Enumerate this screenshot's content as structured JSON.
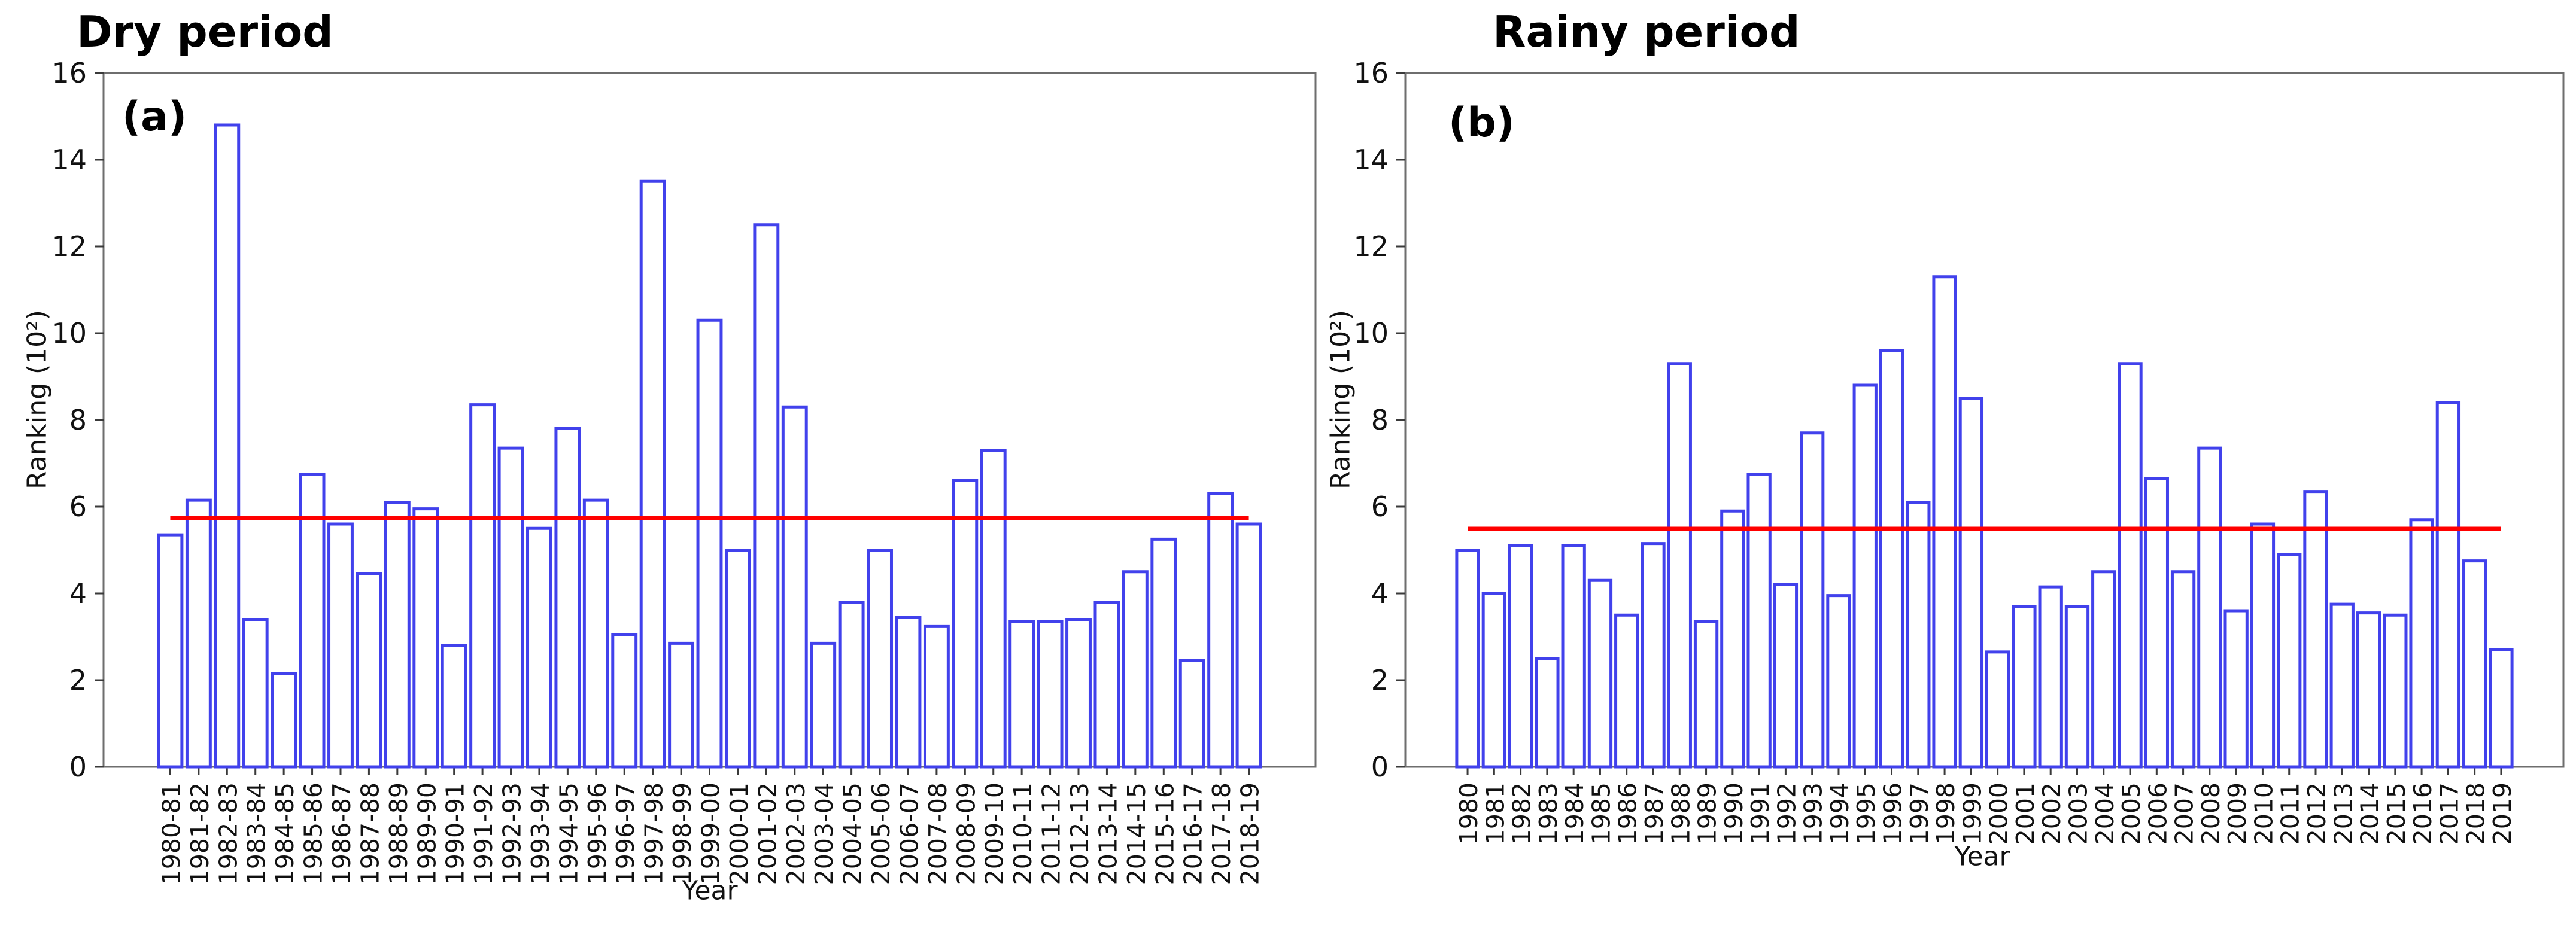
{
  "colors": {
    "background": "#ffffff",
    "bar_fill": "#ffffff",
    "bar_edge": "#4141ec",
    "mean_line": "#ff0000",
    "spine": "#6e6e6e",
    "tick": "#3a3a3a",
    "text": "#111111"
  },
  "chart_data": [
    {
      "type": "bar",
      "panel_label": "(a)",
      "title": "Dry period",
      "xlabel": "Year",
      "ylabel": "Ranking (10²)",
      "ylim": [
        0,
        16
      ],
      "yticks": [
        0,
        2,
        4,
        6,
        8,
        10,
        12,
        14,
        16
      ],
      "grid": false,
      "legend_position": "none",
      "mean_line": {
        "value": 5.74,
        "color": "#ff0000"
      },
      "categories": [
        "1980-81",
        "1981-82",
        "1982-83",
        "1983-84",
        "1984-85",
        "1985-86",
        "1986-87",
        "1987-88",
        "1988-89",
        "1989-90",
        "1990-91",
        "1991-92",
        "1992-93",
        "1993-94",
        "1994-95",
        "1995-96",
        "1996-97",
        "1997-98",
        "1998-99",
        "1999-00",
        "2000-01",
        "2001-02",
        "2002-03",
        "2003-04",
        "2004-05",
        "2005-06",
        "2006-07",
        "2007-08",
        "2008-09",
        "2009-10",
        "2010-11",
        "2011-12",
        "2012-13",
        "2013-14",
        "2014-15",
        "2015-16",
        "2016-17",
        "2017-18",
        "2018-19"
      ],
      "values": [
        5.35,
        6.15,
        14.8,
        3.4,
        2.15,
        6.75,
        5.6,
        4.45,
        6.1,
        5.95,
        2.8,
        8.35,
        7.35,
        5.5,
        7.8,
        6.15,
        3.05,
        13.5,
        2.85,
        10.3,
        5.0,
        12.5,
        8.3,
        2.85,
        3.8,
        5.0,
        3.45,
        3.25,
        6.6,
        7.3,
        3.35,
        3.35,
        3.4,
        3.8,
        4.5,
        5.25,
        2.45,
        6.3,
        5.6
      ]
    },
    {
      "type": "bar",
      "panel_label": "(b)",
      "title": "Rainy period",
      "xlabel": "Year",
      "ylabel": "Ranking (10²)",
      "ylim": [
        0,
        16
      ],
      "yticks": [
        0,
        2,
        4,
        6,
        8,
        10,
        12,
        14,
        16
      ],
      "grid": false,
      "legend_position": "none",
      "mean_line": {
        "value": 5.49,
        "color": "#ff0000"
      },
      "categories": [
        "1980",
        "1981",
        "1982",
        "1983",
        "1984",
        "1985",
        "1986",
        "1987",
        "1988",
        "1989",
        "1990",
        "1991",
        "1992",
        "1993",
        "1994",
        "1995",
        "1996",
        "1997",
        "1998",
        "1999",
        "2000",
        "2001",
        "2002",
        "2003",
        "2004",
        "2005",
        "2006",
        "2007",
        "2008",
        "2009",
        "2010",
        "2011",
        "2012",
        "2013",
        "2014",
        "2015",
        "2016",
        "2017",
        "2018",
        "2019"
      ],
      "values": [
        5.0,
        4.0,
        5.1,
        2.5,
        5.1,
        4.3,
        3.5,
        5.15,
        9.3,
        3.35,
        5.9,
        6.75,
        4.2,
        7.7,
        3.95,
        8.8,
        9.6,
        6.1,
        11.3,
        8.5,
        2.65,
        3.7,
        4.15,
        3.7,
        4.5,
        9.3,
        6.65,
        4.5,
        7.35,
        3.6,
        5.6,
        4.9,
        6.35,
        3.75,
        3.55,
        3.5,
        5.7,
        8.4,
        4.75,
        2.7
      ]
    }
  ]
}
